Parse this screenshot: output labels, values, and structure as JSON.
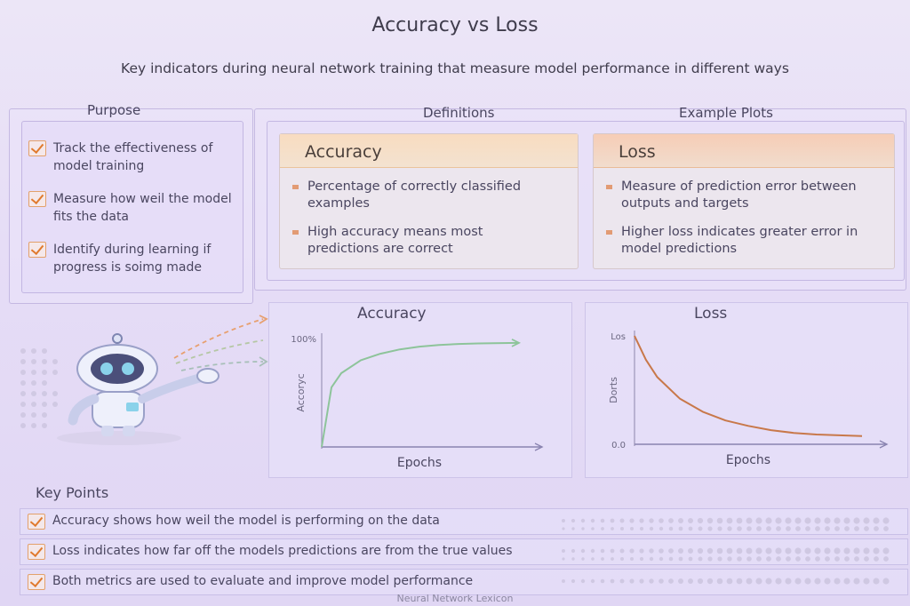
{
  "title": "Accuracy vs Loss",
  "subtitle": "Key indicators during neural network training that measure model performance in different ways",
  "purpose": {
    "heading": "Purpose",
    "items": [
      "Track the effectiveness of model training",
      "Measure how weil the model fits the data",
      "Identify during learning if progress is soimg made"
    ]
  },
  "definitions": {
    "heading": "Definitions",
    "accuracy": {
      "title": "Accuracy",
      "bullets": [
        "Percentage of correctly classified examples",
        "High accuracy means most predictions are correct"
      ]
    },
    "loss": {
      "title": "Loss",
      "bullets": [
        "Measure of prediction error between outputs and targets",
        "Higher loss indicates greater error in model predictions"
      ]
    }
  },
  "example_plots_heading": "Example Plots",
  "accent_color": "#e07a2e",
  "chart_data": [
    {
      "type": "line",
      "title": "Accuracy",
      "xlabel": "Epochs",
      "ylabel": "Accoryc",
      "y_tick_labels": [
        "100%"
      ],
      "ylim": [
        0,
        100
      ],
      "x": [
        0,
        0.5,
        1,
        2,
        3,
        4,
        5,
        6,
        7,
        8,
        10
      ],
      "series": [
        {
          "values": [
            0,
            55,
            68,
            80,
            86,
            90,
            92.5,
            94,
            95,
            95.5,
            96
          ]
        }
      ],
      "color": "#8dc49a"
    },
    {
      "type": "line",
      "title": "Loss",
      "xlabel": "Epochs",
      "ylabel": "Dorts",
      "y_tick_labels": [
        "Los",
        "0.0"
      ],
      "ylim": [
        0,
        100
      ],
      "x": [
        0,
        0.5,
        1,
        2,
        3,
        4,
        5,
        6,
        7,
        8,
        10
      ],
      "series": [
        {
          "values": [
            100,
            78,
            62,
            42,
            30,
            22,
            17,
            13,
            10.5,
            9,
            7.5
          ]
        }
      ],
      "color": "#c8784a"
    }
  ],
  "key_points": {
    "heading": "Key Points",
    "items": [
      "Accuracy shows how weil the model is performing on the data",
      "Loss indicates how far off the models predictions are from the true values",
      "Both metrics are used to evaluate and improve model performance"
    ]
  },
  "footer": "Neural Network Lexicon"
}
